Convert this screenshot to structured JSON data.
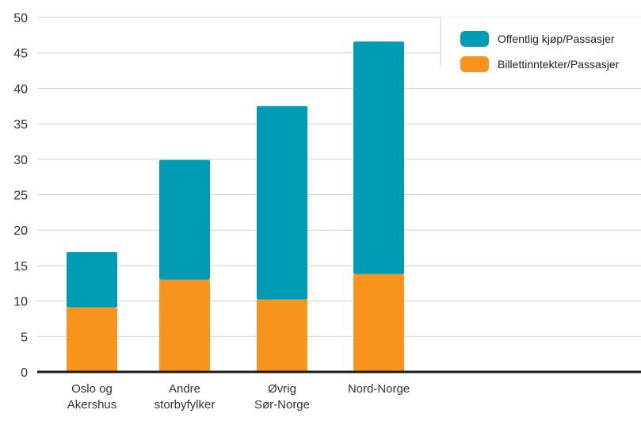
{
  "chart_data": {
    "type": "bar",
    "stacked": true,
    "categories": [
      [
        "Oslo og",
        "Akershus"
      ],
      [
        "Andre",
        "storbyfylker"
      ],
      [
        "Øvrig",
        "Sør-Norge"
      ],
      [
        "Nord-Norge"
      ]
    ],
    "series": [
      {
        "name": "Billettinntekter/Passasjer",
        "color": "#f7941d",
        "values": [
          9.1,
          13.0,
          10.2,
          13.8
        ]
      },
      {
        "name": "Offentlig kjøp/Passasjer",
        "color": "#009bb5",
        "values": [
          7.8,
          16.9,
          27.3,
          32.8
        ]
      }
    ],
    "legend": {
      "position": "top-right",
      "order": [
        "Offentlig kjøp/Passasjer",
        "Billettinntekter/Passasjer"
      ]
    },
    "y_ticks": [
      0,
      5,
      10,
      15,
      20,
      25,
      30,
      35,
      40,
      45,
      50
    ],
    "ylim": [
      0,
      50
    ],
    "grid": true,
    "title": "",
    "xlabel": "",
    "ylabel": ""
  }
}
